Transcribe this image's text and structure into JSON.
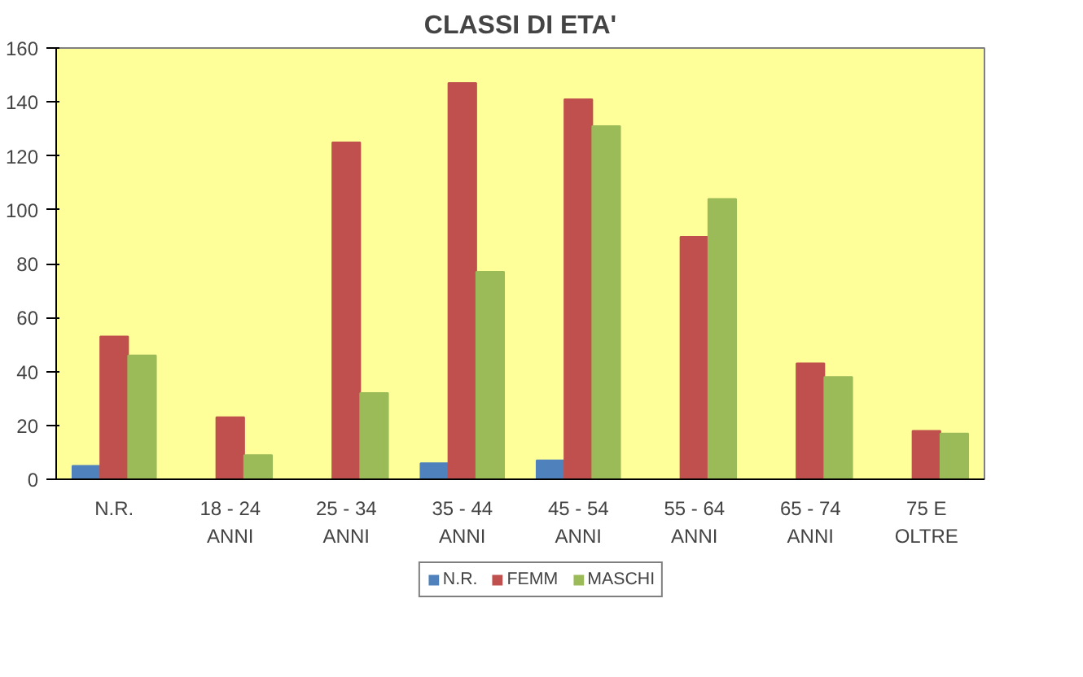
{
  "chart_data": {
    "type": "bar",
    "title": "CLASSI DI ETA'",
    "categories": [
      "N.R.",
      "18 - 24\nANNI",
      "25 - 34\nANNI",
      "35 - 44\nANNI",
      "45 - 54\nANNI",
      "55 - 64\nANNI",
      "65 - 74\nANNI",
      "75 E\nOLTRE"
    ],
    "series": [
      {
        "name": "N.R.",
        "color": "#4f81bd",
        "values": [
          5,
          0,
          0,
          6,
          7,
          0,
          0,
          0
        ]
      },
      {
        "name": "FEMM",
        "color": "#c0504d",
        "values": [
          53,
          23,
          125,
          147,
          141,
          90,
          43,
          18
        ]
      },
      {
        "name": "MASCHI",
        "color": "#9bbb59",
        "values": [
          46,
          9,
          32,
          77,
          131,
          104,
          38,
          17
        ]
      }
    ],
    "ylim": [
      0,
      160
    ],
    "yticks": [
      0,
      20,
      40,
      60,
      80,
      100,
      120,
      140,
      160
    ],
    "grid": false,
    "legend": "bottom"
  }
}
